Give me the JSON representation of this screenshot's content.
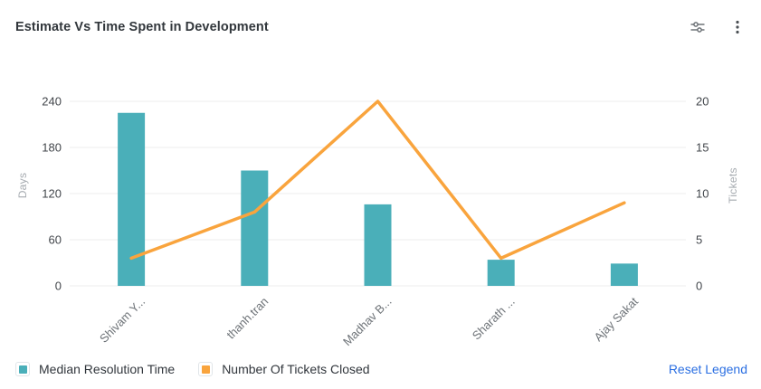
{
  "header": {
    "title": "Estimate Vs Time Spent in Development",
    "icons": [
      "filter-sliders-icon",
      "kebab-menu-icon"
    ]
  },
  "chart_data": {
    "type": "combo-bar-line",
    "title": "Estimate Vs Time Spent in Development",
    "categories": [
      "Shivam Y...",
      "thanh.tran",
      "Madhav B...",
      "Sharath ...",
      "Ajay Sakat"
    ],
    "series": [
      {
        "name": "Median Resolution Time",
        "type": "bar",
        "axis": "left",
        "color": "#4aafb9",
        "values": [
          225,
          150,
          106,
          34,
          29
        ]
      },
      {
        "name": "Number Of Tickets Closed",
        "type": "line",
        "axis": "right",
        "color": "#f9a43d",
        "values": [
          3,
          8,
          20,
          3,
          9
        ]
      }
    ],
    "left_axis": {
      "label": "Days",
      "min": 0,
      "max": 240,
      "ticks": [
        0,
        60,
        120,
        180,
        240
      ]
    },
    "right_axis": {
      "label": "Tickets",
      "min": 0,
      "max": 20,
      "ticks": [
        0,
        5,
        10,
        15,
        20
      ]
    },
    "grid": true,
    "legend_position": "bottom-left"
  },
  "legend": {
    "items": [
      {
        "label": "Median Resolution Time",
        "color": "#4aafb9"
      },
      {
        "label": "Number Of Tickets Closed",
        "color": "#f9a43d"
      }
    ],
    "reset_label": "Reset Legend"
  },
  "colors": {
    "bar": "#4aafb9",
    "line": "#f9a43d",
    "link": "#2b6fe2",
    "grid": "#ededed",
    "tick_text": "#42464b",
    "category_text": "#6e7378",
    "axis_title_text": "#a6abb0",
    "title_text": "#32373c",
    "icon": "#6d7277"
  }
}
